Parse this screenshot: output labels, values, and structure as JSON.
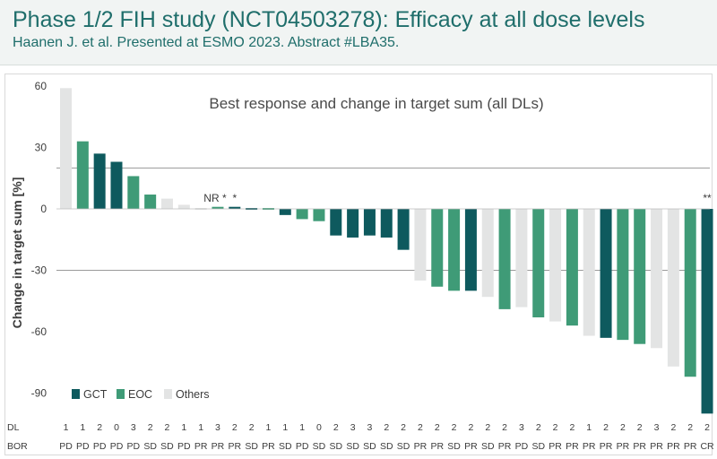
{
  "header": {
    "title": "Phase 1/2 FIH study (NCT04503278): Efficacy at all dose levels",
    "subtitle": "Haanen J. et al. Presented at ESMO 2023. Abstract #LBA35."
  },
  "chart_data": {
    "type": "bar",
    "title": "Best response and change in target sum (all DLs)",
    "ylabel": "Change in target sum [%]",
    "ylim": [
      -100,
      60
    ],
    "yticks": [
      60,
      30,
      0,
      -30,
      -60,
      -90
    ],
    "reference_lines": [
      20,
      -30
    ],
    "legend_position": "bottom-left",
    "legend": [
      {
        "name": "GCT",
        "color": "#0e5a5e"
      },
      {
        "name": "EOC",
        "color": "#3f9b77"
      },
      {
        "name": "Others",
        "color": "#e3e4e4"
      }
    ],
    "row_labels": {
      "dl": "DL",
      "bor": "BOR"
    },
    "annotations": [
      {
        "text": "NR *",
        "bar_index": 9
      },
      {
        "text": "*",
        "bar_index": 10
      },
      {
        "text": "**",
        "bar_index": 38
      }
    ],
    "bars": [
      {
        "value": 59,
        "group": "Others",
        "dl": "1",
        "bor": "PD"
      },
      {
        "value": 33,
        "group": "EOC",
        "dl": "1",
        "bor": "PD"
      },
      {
        "value": 27,
        "group": "GCT",
        "dl": "2",
        "bor": "PD"
      },
      {
        "value": 23,
        "group": "GCT",
        "dl": "0",
        "bor": "PD"
      },
      {
        "value": 16,
        "group": "EOC",
        "dl": "3",
        "bor": "PD"
      },
      {
        "value": 7,
        "group": "EOC",
        "dl": "2",
        "bor": "SD"
      },
      {
        "value": 5,
        "group": "Others",
        "dl": "2",
        "bor": "SD"
      },
      {
        "value": 2,
        "group": "Others",
        "dl": "1",
        "bor": "PD"
      },
      {
        "value": 0,
        "group": "Others",
        "dl": "1",
        "bor": "PR"
      },
      {
        "value": 1,
        "group": "EOC",
        "dl": "3",
        "bor": "PR"
      },
      {
        "value": 1,
        "group": "GCT",
        "dl": "2",
        "bor": "PR"
      },
      {
        "value": 0.5,
        "group": "GCT",
        "dl": "2",
        "bor": "SD"
      },
      {
        "value": 0,
        "group": "EOC",
        "dl": "1",
        "bor": "PR"
      },
      {
        "value": -3,
        "group": "GCT",
        "dl": "1",
        "bor": "SD"
      },
      {
        "value": -5,
        "group": "EOC",
        "dl": "1",
        "bor": "PD"
      },
      {
        "value": -6,
        "group": "EOC",
        "dl": "0",
        "bor": "SD"
      },
      {
        "value": -13,
        "group": "GCT",
        "dl": "2",
        "bor": "SD"
      },
      {
        "value": -14,
        "group": "GCT",
        "dl": "3",
        "bor": "SD"
      },
      {
        "value": -13,
        "group": "GCT",
        "dl": "3",
        "bor": "SD"
      },
      {
        "value": -14,
        "group": "GCT",
        "dl": "2",
        "bor": "SD"
      },
      {
        "value": -20,
        "group": "GCT",
        "dl": "2",
        "bor": "SD"
      },
      {
        "value": -35,
        "group": "Others",
        "dl": "2",
        "bor": "PR"
      },
      {
        "value": -38,
        "group": "EOC",
        "dl": "2",
        "bor": "PR"
      },
      {
        "value": -40,
        "group": "EOC",
        "dl": "2",
        "bor": "SD"
      },
      {
        "value": -40,
        "group": "GCT",
        "dl": "2",
        "bor": "PR"
      },
      {
        "value": -43,
        "group": "Others",
        "dl": "2",
        "bor": "SD"
      },
      {
        "value": -49,
        "group": "EOC",
        "dl": "2",
        "bor": "PR"
      },
      {
        "value": -48,
        "group": "Others",
        "dl": "3",
        "bor": "PD"
      },
      {
        "value": -53,
        "group": "EOC",
        "dl": "2",
        "bor": "SD"
      },
      {
        "value": -55,
        "group": "Others",
        "dl": "2",
        "bor": "PR"
      },
      {
        "value": -57,
        "group": "EOC",
        "dl": "2",
        "bor": "PR"
      },
      {
        "value": -62,
        "group": "Others",
        "dl": "1",
        "bor": "PR"
      },
      {
        "value": -63,
        "group": "GCT",
        "dl": "2",
        "bor": "PR"
      },
      {
        "value": -64,
        "group": "EOC",
        "dl": "2",
        "bor": "PR"
      },
      {
        "value": -66,
        "group": "EOC",
        "dl": "2",
        "bor": "PR"
      },
      {
        "value": -68,
        "group": "Others",
        "dl": "3",
        "bor": "PR"
      },
      {
        "value": -77,
        "group": "Others",
        "dl": "2",
        "bor": "PR"
      },
      {
        "value": -82,
        "group": "EOC",
        "dl": "2",
        "bor": "PR"
      },
      {
        "value": -100,
        "group": "GCT",
        "dl": "2",
        "bor": "CR"
      }
    ]
  }
}
